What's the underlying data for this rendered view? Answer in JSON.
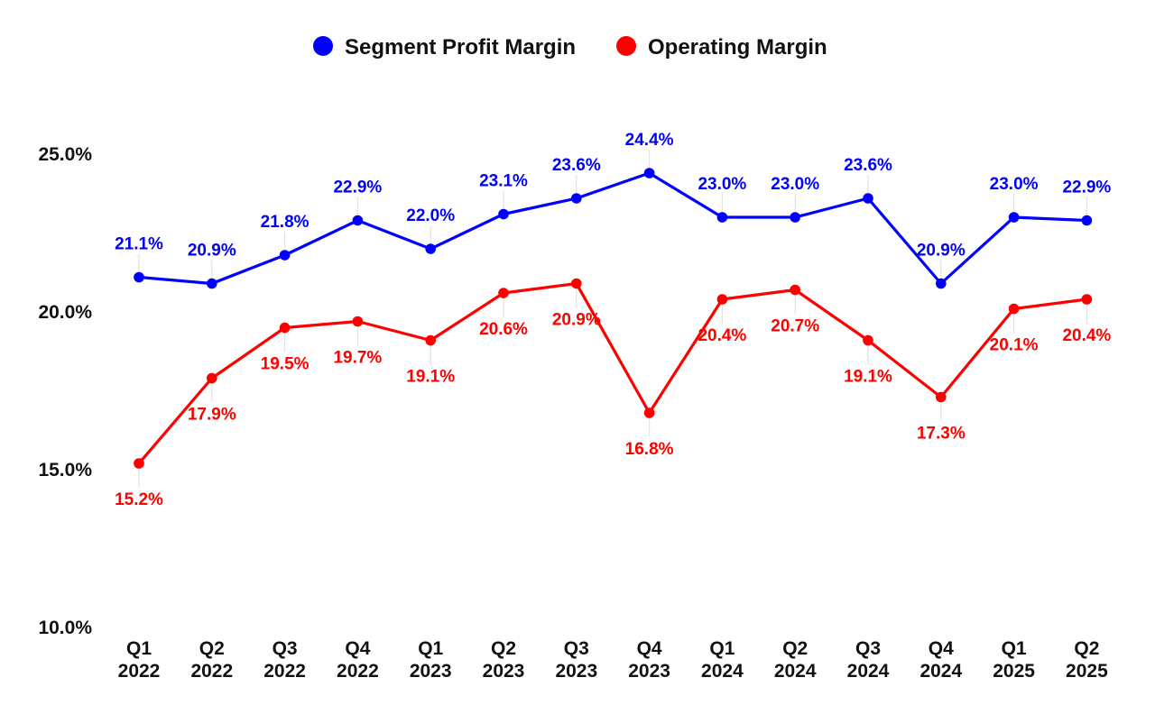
{
  "chart_data": {
    "type": "line",
    "categories": [
      "Q1 2022",
      "Q2 2022",
      "Q3 2022",
      "Q4 2022",
      "Q1 2023",
      "Q2 2023",
      "Q3 2023",
      "Q4 2023",
      "Q1 2024",
      "Q2 2024",
      "Q3 2024",
      "Q4 2024",
      "Q1 2025",
      "Q2 2025"
    ],
    "category_lines": [
      [
        "Q1",
        "2022"
      ],
      [
        "Q2",
        "2022"
      ],
      [
        "Q3",
        "2022"
      ],
      [
        "Q4",
        "2022"
      ],
      [
        "Q1",
        "2023"
      ],
      [
        "Q2",
        "2023"
      ],
      [
        "Q3",
        "2023"
      ],
      [
        "Q4",
        "2023"
      ],
      [
        "Q1",
        "2024"
      ],
      [
        "Q2",
        "2024"
      ],
      [
        "Q3",
        "2024"
      ],
      [
        "Q4",
        "2024"
      ],
      [
        "Q1",
        "2025"
      ],
      [
        "Q2",
        "2025"
      ]
    ],
    "series": [
      {
        "name": "Segment Profit Margin",
        "color": "#0000ff",
        "values": [
          21.1,
          20.9,
          21.8,
          22.9,
          22.0,
          23.1,
          23.6,
          24.4,
          23.0,
          23.0,
          23.6,
          20.9,
          23.0,
          22.9
        ],
        "labels": [
          "21.1%",
          "20.9%",
          "21.8%",
          "22.9%",
          "22.0%",
          "23.1%",
          "23.6%",
          "24.4%",
          "23.0%",
          "23.0%",
          "23.6%",
          "20.9%",
          "23.0%",
          "22.9%"
        ],
        "label_position": "above"
      },
      {
        "name": "Operating Margin",
        "color": "#ff0000",
        "values": [
          15.2,
          17.9,
          19.5,
          19.7,
          19.1,
          20.6,
          20.9,
          16.8,
          20.4,
          20.7,
          19.1,
          17.3,
          20.1,
          20.4
        ],
        "labels": [
          "15.2%",
          "17.9%",
          "19.5%",
          "19.7%",
          "19.1%",
          "20.6%",
          "20.9%",
          "16.8%",
          "20.4%",
          "20.7%",
          "19.1%",
          "17.3%",
          "20.1%",
          "20.4%"
        ],
        "label_position": "below"
      }
    ],
    "y_ticks": [
      10,
      15,
      20,
      25
    ],
    "y_tick_labels": [
      "10.0%",
      "15.0%",
      "20.0%",
      "25.0%"
    ],
    "ylim": [
      10,
      25
    ],
    "grid": false,
    "legend_position": "top-center"
  }
}
